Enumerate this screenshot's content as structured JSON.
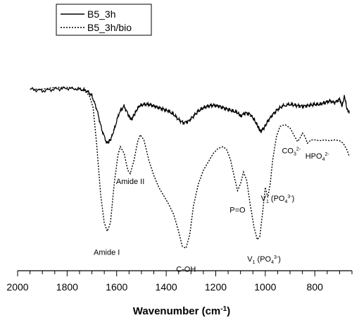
{
  "chart_data": {
    "type": "line",
    "title": "",
    "xlabel": "Wavenumber (cm-1)",
    "xlabel_base": "Wavenumber (cm",
    "xlabel_sup": "-1",
    "xlabel_end": ")",
    "ylabel": "",
    "xlim": [
      2000,
      650
    ],
    "x_reversed": true,
    "xticks": [
      "2000",
      "1800",
      "1600",
      "1400",
      "1200",
      "1000",
      "800"
    ],
    "grid": false,
    "legend_position": "top-left",
    "series": [
      {
        "name": "B5_3h",
        "style": "solid",
        "color": "#000000",
        "points": [
          [
            1950,
            0.06
          ],
          [
            1900,
            0.07
          ],
          [
            1850,
            0.06
          ],
          [
            1800,
            0.055
          ],
          [
            1750,
            0.06
          ],
          [
            1720,
            0.07
          ],
          [
            1700,
            0.1
          ],
          [
            1680,
            0.18
          ],
          [
            1660,
            0.3
          ],
          [
            1640,
            0.38
          ],
          [
            1625,
            0.36
          ],
          [
            1610,
            0.3
          ],
          [
            1590,
            0.2
          ],
          [
            1570,
            0.16
          ],
          [
            1550,
            0.22
          ],
          [
            1540,
            0.24
          ],
          [
            1525,
            0.2
          ],
          [
            1510,
            0.16
          ],
          [
            1490,
            0.15
          ],
          [
            1470,
            0.15
          ],
          [
            1450,
            0.16
          ],
          [
            1430,
            0.17
          ],
          [
            1410,
            0.18
          ],
          [
            1390,
            0.19
          ],
          [
            1370,
            0.21
          ],
          [
            1350,
            0.24
          ],
          [
            1330,
            0.26
          ],
          [
            1310,
            0.25
          ],
          [
            1290,
            0.22
          ],
          [
            1270,
            0.19
          ],
          [
            1250,
            0.17
          ],
          [
            1230,
            0.16
          ],
          [
            1210,
            0.155
          ],
          [
            1190,
            0.16
          ],
          [
            1170,
            0.17
          ],
          [
            1150,
            0.18
          ],
          [
            1130,
            0.19
          ],
          [
            1110,
            0.2
          ],
          [
            1100,
            0.22
          ],
          [
            1080,
            0.2
          ],
          [
            1060,
            0.21
          ],
          [
            1045,
            0.24
          ],
          [
            1030,
            0.28
          ],
          [
            1020,
            0.31
          ],
          [
            1005,
            0.29
          ],
          [
            990,
            0.25
          ],
          [
            970,
            0.21
          ],
          [
            950,
            0.18
          ],
          [
            930,
            0.16
          ],
          [
            900,
            0.15
          ],
          [
            880,
            0.155
          ],
          [
            860,
            0.16
          ],
          [
            840,
            0.16
          ],
          [
            820,
            0.155
          ],
          [
            800,
            0.15
          ],
          [
            780,
            0.15
          ],
          [
            760,
            0.14
          ],
          [
            740,
            0.13
          ],
          [
            720,
            0.14
          ],
          [
            700,
            0.12
          ],
          [
            690,
            0.16
          ],
          [
            680,
            0.1
          ],
          [
            670,
            0.18
          ],
          [
            660,
            0.2
          ]
        ]
      },
      {
        "name": "B5_3h/bio",
        "style": "dotted",
        "color": "#000000",
        "points": [
          [
            1950,
            0.06
          ],
          [
            1900,
            0.06
          ],
          [
            1850,
            0.05
          ],
          [
            1800,
            0.05
          ],
          [
            1760,
            0.06
          ],
          [
            1730,
            0.07
          ],
          [
            1710,
            0.1
          ],
          [
            1695,
            0.17
          ],
          [
            1680,
            0.4
          ],
          [
            1665,
            0.68
          ],
          [
            1650,
            0.85
          ],
          [
            1638,
            0.9
          ],
          [
            1625,
            0.85
          ],
          [
            1610,
            0.62
          ],
          [
            1595,
            0.45
          ],
          [
            1585,
            0.4
          ],
          [
            1570,
            0.44
          ],
          [
            1555,
            0.54
          ],
          [
            1545,
            0.56
          ],
          [
            1530,
            0.48
          ],
          [
            1515,
            0.37
          ],
          [
            1505,
            0.33
          ],
          [
            1490,
            0.36
          ],
          [
            1470,
            0.48
          ],
          [
            1450,
            0.57
          ],
          [
            1430,
            0.64
          ],
          [
            1410,
            0.69
          ],
          [
            1390,
            0.74
          ],
          [
            1370,
            0.8
          ],
          [
            1350,
            0.9
          ],
          [
            1335,
            0.99
          ],
          [
            1320,
            1.0
          ],
          [
            1305,
            0.92
          ],
          [
            1290,
            0.75
          ],
          [
            1270,
            0.62
          ],
          [
            1250,
            0.54
          ],
          [
            1230,
            0.49
          ],
          [
            1210,
            0.44
          ],
          [
            1190,
            0.41
          ],
          [
            1170,
            0.4
          ],
          [
            1155,
            0.42
          ],
          [
            1140,
            0.48
          ],
          [
            1125,
            0.58
          ],
          [
            1112,
            0.66
          ],
          [
            1100,
            0.62
          ],
          [
            1088,
            0.55
          ],
          [
            1075,
            0.6
          ],
          [
            1060,
            0.75
          ],
          [
            1045,
            0.88
          ],
          [
            1032,
            0.95
          ],
          [
            1022,
            0.93
          ],
          [
            1010,
            0.78
          ],
          [
            1000,
            0.64
          ],
          [
            990,
            0.7
          ],
          [
            980,
            0.62
          ],
          [
            970,
            0.48
          ],
          [
            955,
            0.34
          ],
          [
            940,
            0.28
          ],
          [
            920,
            0.27
          ],
          [
            900,
            0.29
          ],
          [
            885,
            0.33
          ],
          [
            870,
            0.37
          ],
          [
            860,
            0.35
          ],
          [
            850,
            0.32
          ],
          [
            840,
            0.34
          ],
          [
            830,
            0.38
          ],
          [
            815,
            0.36
          ],
          [
            800,
            0.36
          ],
          [
            780,
            0.365
          ],
          [
            760,
            0.36
          ],
          [
            740,
            0.365
          ],
          [
            720,
            0.36
          ],
          [
            700,
            0.365
          ],
          [
            685,
            0.38
          ],
          [
            670,
            0.42
          ],
          [
            660,
            0.46
          ]
        ]
      }
    ],
    "annotations": [
      {
        "id": "amide-i",
        "base": "Amide I",
        "sub": "",
        "sup": "",
        "end": "",
        "x": 1640,
        "y": 1.04
      },
      {
        "id": "amide-ii",
        "base": "Amide II",
        "sub": "",
        "sup": "",
        "end": "",
        "x": 1545,
        "y": 0.62
      },
      {
        "id": "c-oh",
        "base": "C-OH",
        "sub": "",
        "sup": "",
        "end": "",
        "x": 1320,
        "y": 1.14
      },
      {
        "id": "p-o",
        "base": "P=O",
        "sub": "",
        "sup": "",
        "end": "",
        "x": 1112,
        "y": 0.79
      },
      {
        "id": "v1-po4-a",
        "base": "V",
        "sub": "1",
        "mid": " (PO",
        "sub2": "4",
        "sup": "3-",
        "end": ")",
        "x": 1005,
        "y": 1.08
      },
      {
        "id": "v1-po4-b",
        "base": "V",
        "sub": "1",
        "mid": " (PO",
        "sub2": "4",
        "sup": "3-",
        "end": ")",
        "x": 950,
        "y": 0.72
      },
      {
        "id": "co3",
        "base": "CO",
        "sub": "3",
        "mid": "",
        "sub2": "",
        "sup": "2-",
        "end": "",
        "x": 895,
        "y": 0.44
      },
      {
        "id": "hpo4",
        "base": "HPO",
        "sub": "4",
        "mid": "",
        "sub2": "",
        "sup": "2-",
        "end": "",
        "x": 790,
        "y": 0.47
      }
    ]
  }
}
